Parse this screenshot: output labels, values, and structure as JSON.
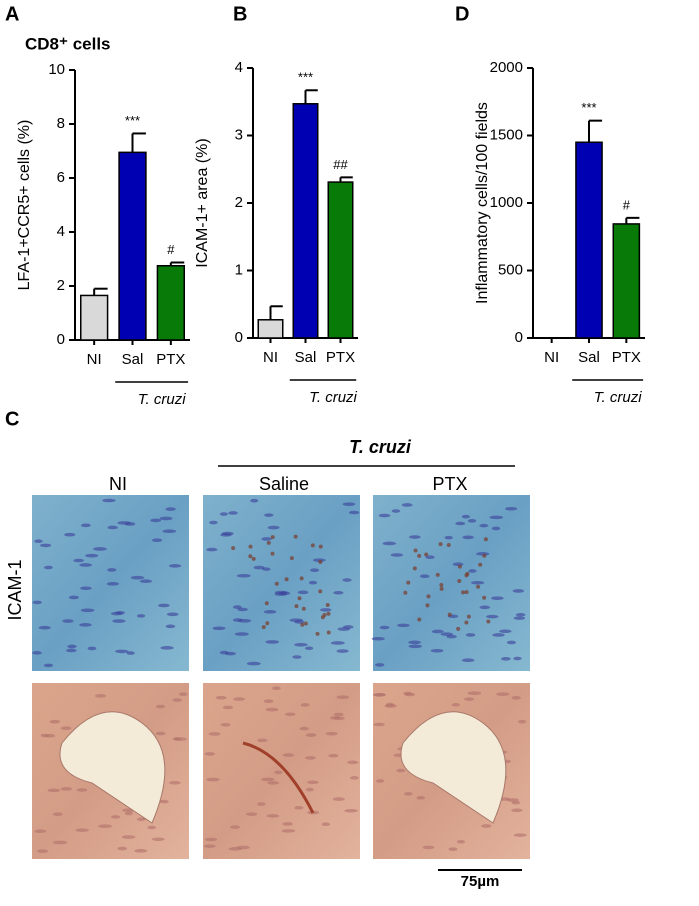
{
  "chart_data": [
    {
      "type": "bar",
      "panel": "A",
      "title": "CD8⁺ cells",
      "ylabel": "LFA-1+CCR5+ cells (%)",
      "categories": [
        "NI",
        "Sal",
        "PTX"
      ],
      "values": [
        1.65,
        6.95,
        2.75
      ],
      "errors": [
        0.25,
        0.7,
        0.12
      ],
      "colors": [
        "#d9d9d9",
        "#0000b3",
        "#087a08"
      ],
      "annotations": [
        null,
        "***",
        "#"
      ],
      "group_label": "T. cruzi",
      "ylim": [
        0,
        10
      ],
      "yticks": [
        0,
        2,
        4,
        6,
        8,
        10
      ]
    },
    {
      "type": "bar",
      "panel": "B",
      "ylabel": "ICAM-1+ area (%)",
      "categories": [
        "NI",
        "Sal",
        "PTX"
      ],
      "values": [
        0.27,
        3.47,
        2.31
      ],
      "errors": [
        0.2,
        0.2,
        0.07
      ],
      "colors": [
        "#d9d9d9",
        "#0000b3",
        "#087a08"
      ],
      "annotations": [
        null,
        "***",
        "##"
      ],
      "group_label": "T. cruzi",
      "ylim": [
        0,
        4
      ],
      "yticks": [
        0,
        1,
        2,
        3,
        4
      ]
    },
    {
      "type": "bar",
      "panel": "D",
      "ylabel": "Inflammatory cells/100 fields",
      "categories": [
        "NI",
        "Sal",
        "PTX"
      ],
      "values": [
        0,
        1450,
        845
      ],
      "errors": [
        0,
        160,
        45
      ],
      "colors": [
        "#d9d9d9",
        "#0000b3",
        "#087a08"
      ],
      "annotations": [
        null,
        "***",
        "#"
      ],
      "group_label": "T. cruzi",
      "ylim": [
        0,
        2000
      ],
      "yticks": [
        0,
        500,
        1000,
        1500,
        2000
      ]
    }
  ],
  "panel_c": {
    "letter": "C",
    "group_label": "T. cruzi",
    "columns": [
      "NI",
      "Saline",
      "PTX"
    ],
    "row_label": "ICAM-1",
    "scale_bar": "75µm"
  }
}
